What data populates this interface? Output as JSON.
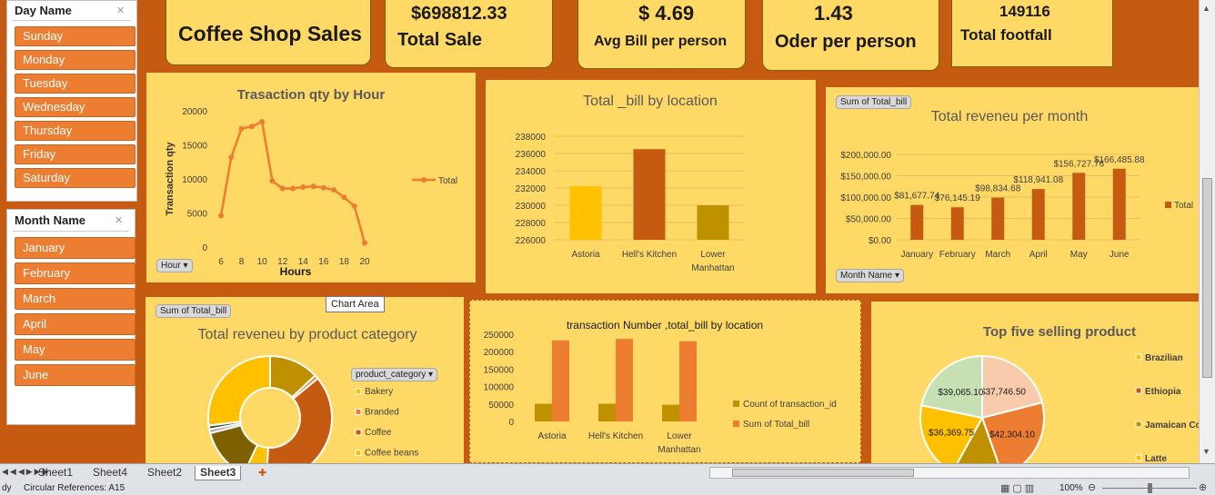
{
  "slicers": {
    "day": {
      "title": "Day Name",
      "items": [
        "Sunday",
        "Monday",
        "Tuesday",
        "Wednesday",
        "Thursday",
        "Friday",
        "Saturday"
      ]
    },
    "month": {
      "title": "Month Name",
      "items": [
        "January",
        "February",
        "March",
        "April",
        "May",
        "June"
      ]
    }
  },
  "kpis": {
    "title": "Coffee Shop Sales",
    "total_sale": {
      "value": "$698812.33",
      "label": "Total Sale"
    },
    "avg_bill": {
      "value": "$ 4.69",
      "label": "Avg Bill per person"
    },
    "order_per_person": {
      "value": "1.43",
      "label": "Oder per person"
    },
    "footfall": {
      "value": "149116",
      "label": "Total  footfall"
    }
  },
  "buttons": {
    "hour": "Hour",
    "sum_total_bill_1": "Sum of Total_bill",
    "month_name": "Month Name",
    "sum_total_bill_2": "Sum of Total_bill",
    "product_category": "product_category"
  },
  "tooltip": "Chart Area",
  "colors": {
    "sheet_bg": "#C55A11",
    "panel": "#FFD966",
    "orange": "#ED7D31",
    "dark_orange": "#C55A11",
    "gold": "#FFC000",
    "olive": "#BF9000"
  },
  "chart_data": [
    {
      "type": "line",
      "title": "Trasaction  qty by Hour",
      "xlabel": "Hours",
      "ylabel": "Transaction qty",
      "x": [
        6,
        7,
        8,
        9,
        10,
        11,
        12,
        13,
        14,
        15,
        16,
        17,
        18,
        19,
        20
      ],
      "xticks": [
        6,
        8,
        10,
        12,
        14,
        16,
        18,
        20
      ],
      "series": [
        {
          "name": "Total",
          "values": [
            4600,
            13200,
            17400,
            17700,
            18400,
            9700,
            8600,
            8600,
            8800,
            8900,
            8700,
            8400,
            7300,
            6000,
            600
          ]
        }
      ],
      "ylim": [
        0,
        20000
      ],
      "yticks": [
        0,
        5000,
        10000,
        15000,
        20000
      ],
      "legend": "right"
    },
    {
      "type": "bar",
      "title": "Total _bill by location",
      "categories": [
        "Astoria",
        "Hell's Kitchen",
        "Lower Manhattan"
      ],
      "values": [
        232200,
        236500,
        230000
      ],
      "ylim": [
        226000,
        238000
      ],
      "yticks": [
        226000,
        228000,
        230000,
        232000,
        234000,
        236000,
        238000
      ]
    },
    {
      "type": "bar",
      "title": "Total reveneu per month",
      "categories": [
        "January",
        "February",
        "March",
        "April",
        "May",
        "June"
      ],
      "values": [
        81677.74,
        76145.19,
        98834.68,
        118941.08,
        156727.76,
        166485.88
      ],
      "data_labels": [
        "$81,677.74",
        "$76,145.19",
        "$98,834.68",
        "$118,941.08",
        "$156,727.76",
        "$166,485.88"
      ],
      "ylim": [
        0,
        200000
      ],
      "yticks": [
        "$0.00",
        "$50,000.00",
        "$100,000.00",
        "$150,000.00",
        "$200,000.00"
      ],
      "series": [
        {
          "name": "Total"
        }
      ],
      "legend": "right"
    },
    {
      "type": "pie",
      "title": "Total reveneu by product   category",
      "legend": [
        "Bakery",
        "Branded",
        "Coffee",
        "Coffee beans"
      ],
      "values": [
        13,
        1,
        37,
        6,
        14,
        1,
        1,
        27
      ],
      "slice_colors": [
        "#BF9000",
        "#ED7D31",
        "#C55A11",
        "#FFC000",
        "#7F6000",
        "#A5A5A5",
        "#375623",
        "#FFC000"
      ]
    },
    {
      "type": "bar",
      "title": "transaction Number ,total_bill by location",
      "categories": [
        "Astoria",
        "Hell's Kitchen",
        "Lower Manhattan"
      ],
      "series": [
        {
          "name": "Count of transaction_id",
          "values": [
            50599,
            50735,
            47782
          ]
        },
        {
          "name": "Sum of Total_bill",
          "values": [
            232243.91,
            236511.17,
            230057.25
          ]
        }
      ],
      "ylim": [
        0,
        250000
      ],
      "yticks": [
        0,
        50000,
        100000,
        150000,
        200000,
        250000
      ],
      "legend": "right"
    },
    {
      "type": "pie",
      "title": "Top five selling product",
      "legend": [
        "Brazilian",
        "Ethiopia",
        "Jamaican Co",
        "Latte"
      ],
      "values": [
        37746.5,
        42304.1,
        24000,
        36369.75,
        39065.1
      ],
      "data_labels": [
        "$37,746.50",
        "$42,304.10",
        "",
        "$36,369.75",
        "$39,065.10"
      ],
      "slice_colors": [
        "#F8CBAD",
        "#ED7D31",
        "#BF9000",
        "#FFC000",
        "#C6E0B4"
      ]
    }
  ],
  "sheet_tabs": [
    "Sheet1",
    "Sheet4",
    "Sheet2",
    "Sheet3"
  ],
  "status": {
    "ready": "dy",
    "circular": "Circular References: A15",
    "zoom": "100%"
  }
}
